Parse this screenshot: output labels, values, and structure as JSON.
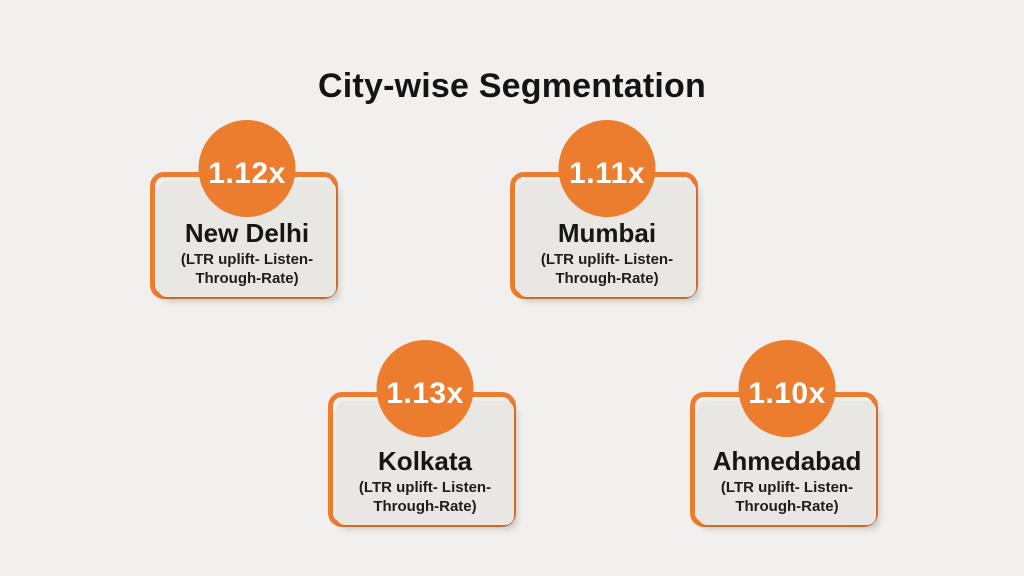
{
  "page": {
    "title": "City-wise Segmentation",
    "background_color": "#F1F0EE",
    "accent_color": "#ED7D2E",
    "card_color": "#E9E7E4",
    "text_color": "#161616",
    "badge_text_color": "#FFFFFF"
  },
  "cards": [
    {
      "id": "new-delhi",
      "value": "1.12x",
      "city": "New Delhi",
      "note_line1": "(LTR uplift- Listen-",
      "note_line2": "Through-Rate)"
    },
    {
      "id": "mumbai",
      "value": "1.11x",
      "city": "Mumbai",
      "note_line1": "(LTR uplift- Listen-",
      "note_line2": "Through-Rate)"
    },
    {
      "id": "kolkata",
      "value": "1.13x",
      "city": "Kolkata",
      "note_line1": "(LTR uplift- Listen-",
      "note_line2": "Through-Rate)"
    },
    {
      "id": "ahmedabad",
      "value": "1.10x",
      "city": "Ahmedabad",
      "note_line1": "(LTR uplift- Listen-",
      "note_line2": "Through-Rate)"
    }
  ],
  "chart_data": {
    "type": "table",
    "title": "City-wise Segmentation",
    "metric": "LTR uplift (Listen-Through-Rate)",
    "categories": [
      "New Delhi",
      "Mumbai",
      "Kolkata",
      "Ahmedabad"
    ],
    "values": [
      1.12,
      1.11,
      1.13,
      1.1
    ],
    "value_suffix": "x",
    "layout": "four stat cards in two staggered rows, orange value badge above each card"
  }
}
